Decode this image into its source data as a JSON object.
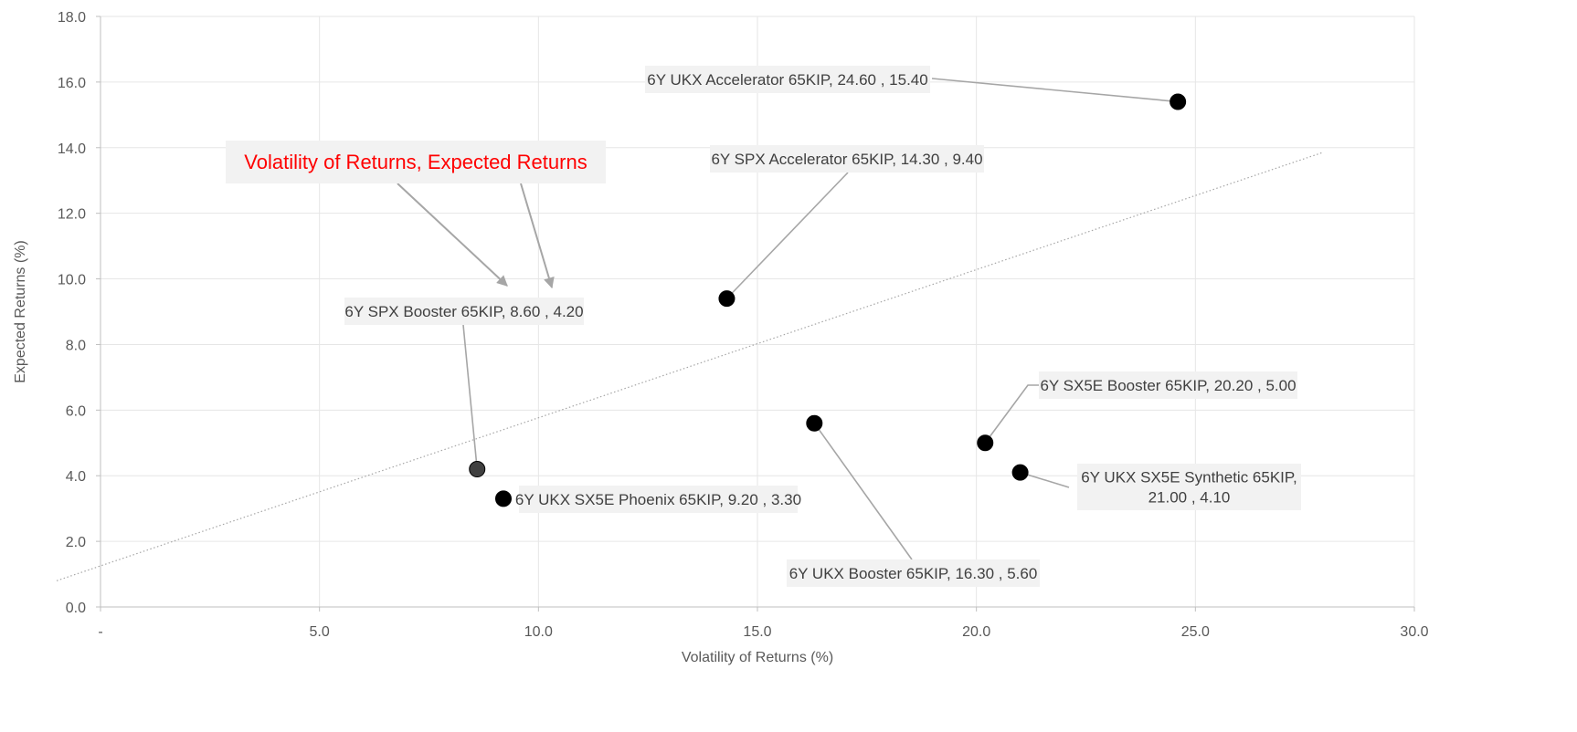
{
  "chart_data": {
    "type": "scatter",
    "title": "",
    "xlabel": "Volatility of Returns (%)",
    "ylabel": "Expected Returns (%)",
    "xlim": [
      0,
      30
    ],
    "ylim": [
      0,
      18
    ],
    "x_ticks": [
      {
        "value": 0,
        "label": "-"
      },
      {
        "value": 5,
        "label": "5.0"
      },
      {
        "value": 10,
        "label": "10.0"
      },
      {
        "value": 15,
        "label": "15.0"
      },
      {
        "value": 20,
        "label": "20.0"
      },
      {
        "value": 25,
        "label": "25.0"
      },
      {
        "value": 30,
        "label": "30.0"
      }
    ],
    "y_ticks": [
      {
        "value": 0,
        "label": "0.0"
      },
      {
        "value": 2,
        "label": "2.0"
      },
      {
        "value": 4,
        "label": "4.0"
      },
      {
        "value": 6,
        "label": "6.0"
      },
      {
        "value": 8,
        "label": "8.0"
      },
      {
        "value": 10,
        "label": "10.0"
      },
      {
        "value": 12,
        "label": "12.0"
      },
      {
        "value": 14,
        "label": "14.0"
      },
      {
        "value": 16,
        "label": "16.0"
      },
      {
        "value": 18,
        "label": "18.0"
      }
    ],
    "grid": true,
    "points": [
      {
        "x": 24.6,
        "y": 15.4,
        "label": [
          "6Y UKX Accelerator 65KIP,  24.60 , 15.40"
        ],
        "color": "#000000"
      },
      {
        "x": 14.3,
        "y": 9.4,
        "label": [
          "6Y SPX Accelerator 65KIP,  14.30 , 9.40"
        ],
        "color": "#000000"
      },
      {
        "x": 8.6,
        "y": 4.2,
        "label": [
          "6Y SPX Booster 65KIP,  8.60 , 4.20"
        ],
        "color": "#404040"
      },
      {
        "x": 9.2,
        "y": 3.3,
        "label": [
          "6Y UKX SX5E Phoenix 65KIP,  9.20 , 3.30"
        ],
        "color": "#000000"
      },
      {
        "x": 16.3,
        "y": 5.6,
        "label": [
          "6Y UKX Booster 65KIP,  16.30 , 5.60"
        ],
        "color": "#000000"
      },
      {
        "x": 20.2,
        "y": 5.0,
        "label": [
          "6Y SX5E Booster 65KIP,  20.20 , 5.00"
        ],
        "color": "#000000"
      },
      {
        "x": 21.0,
        "y": 4.1,
        "label": [
          "6Y UKX SX5E Synthetic 65KIP,",
          "21.00 , 4.10"
        ],
        "color": "#000000"
      }
    ],
    "trendline": {
      "type": "linear",
      "style": "dotted",
      "color": "#a6a6a6",
      "from": {
        "x": -1.0,
        "y": 0.8
      },
      "to": {
        "x": 27.9,
        "y": 13.85
      }
    },
    "annotation": {
      "text": "Volatility of Returns, Expected Returns",
      "color": "#ff0000"
    }
  }
}
